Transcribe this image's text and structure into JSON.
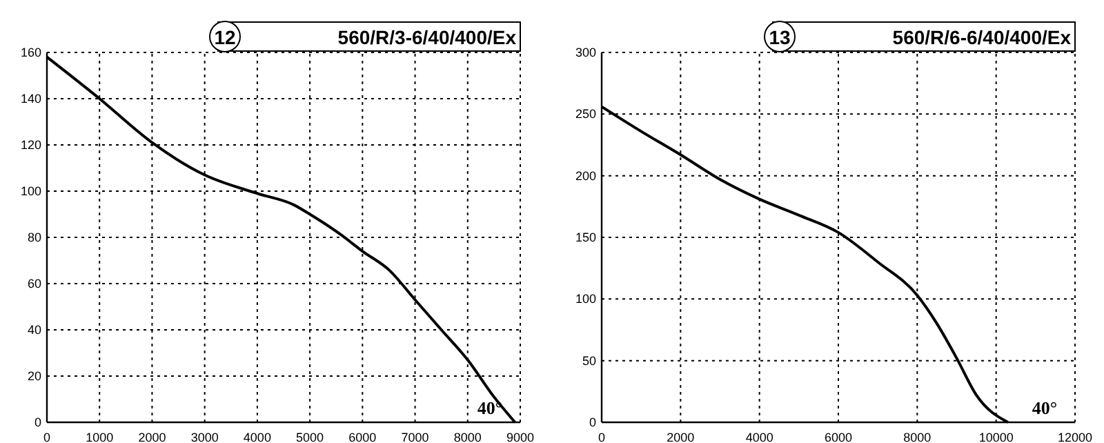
{
  "chart_data": [
    {
      "type": "line",
      "title": "560/R/3-6/40/400/Ex",
      "annotations": [
        "12",
        "40°"
      ],
      "x": [
        0,
        1000,
        2000,
        3000,
        4000,
        4700,
        5000,
        5600,
        6000,
        6500,
        7000,
        7500,
        8000,
        8500,
        8900
      ],
      "series": [
        {
          "color": "#000000",
          "values": [
            158,
            140,
            121,
            107,
            99,
            94,
            90,
            81,
            74,
            66,
            53,
            40,
            27,
            11,
            0
          ]
        }
      ],
      "xlim": [
        0,
        9000
      ],
      "xticks": [
        0,
        1000,
        2000,
        3000,
        4000,
        5000,
        6000,
        7000,
        8000,
        9000
      ],
      "ylim": [
        0,
        160
      ],
      "yticks": [
        0,
        20,
        40,
        60,
        80,
        100,
        120,
        140,
        160
      ],
      "grid": true,
      "marker": "none",
      "line_style": "solid"
    },
    {
      "type": "line",
      "title": "560/R/6-6/40/400/Ex",
      "annotations": [
        "13",
        "40°"
      ],
      "x": [
        0,
        1000,
        2000,
        3000,
        4000,
        5000,
        6000,
        7000,
        8000,
        8500,
        9000,
        9500,
        10300
      ],
      "series": [
        {
          "color": "#000000",
          "values": [
            256,
            236,
            217,
            197,
            181,
            168,
            154,
            130,
            103,
            80,
            52,
            22,
            0
          ]
        }
      ],
      "xlim": [
        0,
        12000
      ],
      "xticks": [
        0,
        2000,
        4000,
        6000,
        8000,
        10000,
        12000
      ],
      "ylim": [
        0,
        300
      ],
      "yticks": [
        0,
        50,
        100,
        150,
        200,
        250,
        300
      ],
      "grid": true,
      "marker": "none",
      "line_style": "solid"
    }
  ]
}
